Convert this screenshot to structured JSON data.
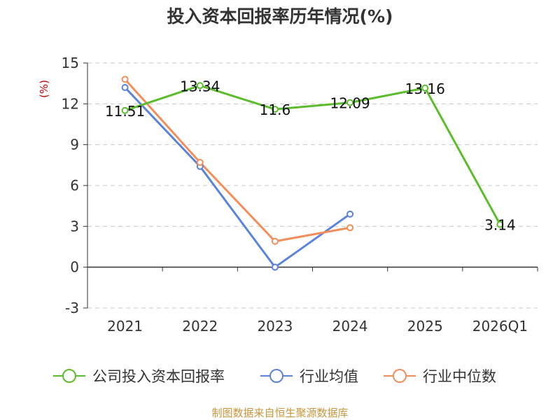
{
  "title": "投入资本回报率历年情况(%)",
  "unit_label": "(%)",
  "source": "制图数据来自恒生聚源数据库",
  "chart_data": {
    "type": "line",
    "categories": [
      "2021",
      "2022",
      "2023",
      "2024",
      "2025",
      "2026Q1"
    ],
    "ylim": [
      -3,
      15
    ],
    "yticks": [
      15,
      12,
      9,
      6,
      3,
      0,
      -3
    ],
    "grid": true,
    "legend_position": "bottom",
    "series": [
      {
        "name": "公司投入资本回报率",
        "color": "#5cbd2c",
        "values": [
          11.51,
          13.34,
          11.6,
          12.09,
          13.16,
          3.14
        ],
        "labels": [
          "11.51",
          "13.34",
          "11.6",
          "12.09",
          "13.16",
          "3.14"
        ]
      },
      {
        "name": "行业均值",
        "color": "#5b83da",
        "values": [
          13.2,
          7.4,
          0.0,
          3.9,
          null,
          null
        ]
      },
      {
        "name": "行业中位数",
        "color": "#f28e5b",
        "values": [
          13.8,
          7.7,
          1.9,
          2.9,
          null,
          null
        ]
      }
    ]
  }
}
